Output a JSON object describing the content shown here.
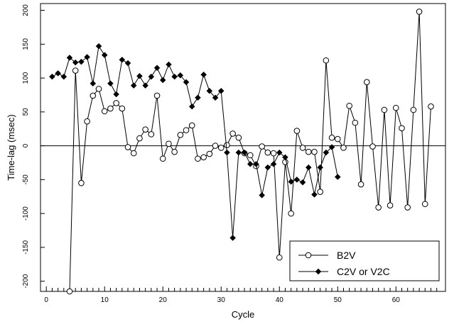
{
  "chart_data": {
    "type": "line",
    "title": "",
    "xlabel": "Cycle",
    "ylabel": "Time-lag (msec)",
    "xlim": [
      -1,
      68.5
    ],
    "ylim": [
      -215,
      210
    ],
    "x_ticks": [
      0,
      10,
      20,
      30,
      40,
      50,
      60
    ],
    "y_ticks": [
      -200,
      -150,
      -100,
      -50,
      0,
      50,
      100,
      150,
      200
    ],
    "reference_line_y": 0,
    "legend_position": "bottom-right",
    "series": [
      {
        "name": "B2V",
        "marker": "open-circle",
        "x": [
          4,
          5,
          6,
          7,
          8,
          9,
          10,
          11,
          12,
          13,
          14,
          15,
          16,
          17,
          18,
          19,
          20,
          21,
          22,
          23,
          24,
          25,
          26,
          27,
          28,
          29,
          30,
          31,
          32,
          33,
          34,
          35,
          36,
          37,
          38,
          39,
          40,
          41,
          42,
          43,
          44,
          45,
          46,
          47,
          48,
          49,
          50,
          51,
          52,
          53,
          54,
          55,
          56,
          57,
          58,
          59,
          60,
          61,
          62,
          63,
          64,
          65,
          66
        ],
        "values": [
          -215,
          111,
          -55,
          36,
          74,
          84,
          51,
          55,
          63,
          55,
          -2,
          -11,
          11,
          24,
          17,
          74,
          -19,
          3,
          -9,
          16,
          23,
          30,
          -19,
          -17,
          -12,
          0,
          -3,
          1,
          18,
          12,
          -11,
          -14,
          -30,
          -1,
          -10,
          -11,
          -165,
          -24,
          -100,
          22,
          -3,
          -9,
          -9,
          -68,
          126,
          12,
          10,
          -3,
          59,
          34,
          -57,
          94,
          -1,
          -91,
          53,
          -88,
          56,
          26,
          -91,
          53,
          198,
          -86,
          58
        ]
      },
      {
        "name": "C2V or V2C",
        "marker": "filled-diamond",
        "x": [
          1,
          2,
          3,
          4,
          5,
          6,
          7,
          8,
          9,
          10,
          11,
          12,
          13,
          14,
          15,
          16,
          17,
          18,
          19,
          20,
          21,
          22,
          23,
          24,
          25,
          26,
          27,
          28,
          29,
          30,
          31,
          32,
          33,
          34,
          35,
          36,
          37,
          38,
          39,
          40,
          41,
          42,
          43,
          44,
          45,
          46,
          47,
          48,
          49,
          50
        ],
        "values": [
          102,
          107,
          102,
          130,
          123,
          124,
          131,
          92,
          147,
          134,
          92,
          76,
          127,
          122,
          89,
          103,
          89,
          102,
          115,
          97,
          120,
          102,
          104,
          94,
          58,
          71,
          105,
          81,
          71,
          81,
          -10,
          -136,
          -10,
          -10,
          -27,
          -27,
          -73,
          -32,
          -27,
          -10,
          -17,
          -53,
          -50,
          -54,
          -32,
          -72,
          -32,
          -10,
          -2,
          -46
        ]
      }
    ]
  }
}
